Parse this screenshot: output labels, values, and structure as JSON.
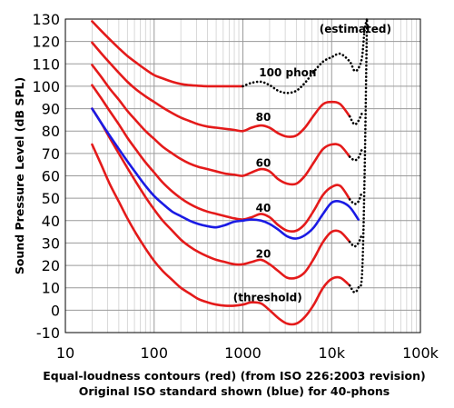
{
  "chart_data": {
    "type": "line",
    "title": "",
    "ylabel": "Sound Pressure Level (dB SPL)",
    "xlabel_lines": [
      "Equal-loudness contours (red) (from ISO 226:2003 revision)",
      "Original ISO standard shown (blue) for 40-phons"
    ],
    "x_scale": "log",
    "xlim": [
      10,
      100000
    ],
    "ylim": [
      -10,
      130
    ],
    "x_ticks": [
      {
        "value": 10,
        "label": "10"
      },
      {
        "value": 100,
        "label": "100"
      },
      {
        "value": 1000,
        "label": "1000"
      },
      {
        "value": 10000,
        "label": "10k"
      },
      {
        "value": 100000,
        "label": "100k"
      }
    ],
    "y_ticks": [
      {
        "value": 130,
        "label": "130"
      },
      {
        "value": 120,
        "label": "120"
      },
      {
        "value": 110,
        "label": "110"
      },
      {
        "value": 100,
        "label": "100"
      },
      {
        "value": 90,
        "label": "90"
      },
      {
        "value": 80,
        "label": "80"
      },
      {
        "value": 70,
        "label": "70"
      },
      {
        "value": 60,
        "label": "60"
      },
      {
        "value": 50,
        "label": "50"
      },
      {
        "value": 40,
        "label": "40"
      },
      {
        "value": 30,
        "label": "30"
      },
      {
        "value": 20,
        "label": "20"
      },
      {
        "value": 10,
        "label": "10"
      },
      {
        "value": 0,
        "label": "0"
      },
      {
        "value": -10,
        "label": "-10"
      }
    ],
    "grid": true,
    "colors": {
      "red": "#e41a1a",
      "blue": "#1a1ae4",
      "dotted": "#000000"
    },
    "series": [
      {
        "key": "threshold",
        "color": "red",
        "style": "solid",
        "points": [
          [
            20,
            74
          ],
          [
            25,
            65.5
          ],
          [
            31.5,
            56.5
          ],
          [
            40,
            48.5
          ],
          [
            50,
            41
          ],
          [
            63,
            34
          ],
          [
            80,
            27.5
          ],
          [
            100,
            22
          ],
          [
            125,
            17.5
          ],
          [
            160,
            13.5
          ],
          [
            200,
            10
          ],
          [
            250,
            7.5
          ],
          [
            315,
            5
          ],
          [
            400,
            3.5
          ],
          [
            500,
            2.5
          ],
          [
            630,
            2
          ],
          [
            800,
            2
          ],
          [
            1000,
            2.5
          ],
          [
            1250,
            3.5
          ],
          [
            1600,
            3
          ],
          [
            2000,
            0
          ],
          [
            2500,
            -3.5
          ],
          [
            3150,
            -6
          ],
          [
            4000,
            -6
          ],
          [
            5000,
            -3
          ],
          [
            6300,
            2.5
          ],
          [
            8000,
            10
          ],
          [
            10000,
            14
          ],
          [
            12500,
            14.5
          ],
          [
            16000,
            11
          ]
        ]
      },
      {
        "key": "threshold-estimated",
        "color": "dotted",
        "style": "dotted",
        "points": [
          [
            16000,
            11
          ],
          [
            18000,
            8
          ],
          [
            20000,
            10
          ],
          [
            22000,
            16
          ],
          [
            23500,
            60
          ],
          [
            25000,
            130
          ]
        ]
      },
      {
        "key": "phon-20",
        "color": "red",
        "style": "solid",
        "points": [
          [
            20,
            90
          ],
          [
            25,
            84
          ],
          [
            31.5,
            77
          ],
          [
            40,
            70
          ],
          [
            50,
            63.5
          ],
          [
            63,
            57
          ],
          [
            80,
            50.5
          ],
          [
            100,
            45
          ],
          [
            125,
            40
          ],
          [
            160,
            35.5
          ],
          [
            200,
            31.5
          ],
          [
            250,
            28.5
          ],
          [
            315,
            26
          ],
          [
            400,
            24
          ],
          [
            500,
            22.5
          ],
          [
            630,
            21.5
          ],
          [
            800,
            20.5
          ],
          [
            1000,
            20.5
          ],
          [
            1250,
            21.5
          ],
          [
            1600,
            22.5
          ],
          [
            2000,
            20.5
          ],
          [
            2500,
            17.5
          ],
          [
            3150,
            14.5
          ],
          [
            4000,
            14.5
          ],
          [
            5000,
            17
          ],
          [
            6300,
            23
          ],
          [
            8000,
            30.5
          ],
          [
            10000,
            35
          ],
          [
            12500,
            35
          ],
          [
            16000,
            30.5
          ]
        ]
      },
      {
        "key": "phon-20-estimated",
        "color": "dotted",
        "style": "dotted",
        "points": [
          [
            16000,
            30.5
          ],
          [
            18000,
            28.5
          ],
          [
            20000,
            30
          ],
          [
            22000,
            34
          ]
        ]
      },
      {
        "key": "phon-40",
        "color": "red",
        "style": "solid",
        "points": [
          [
            20,
            100.5
          ],
          [
            25,
            95
          ],
          [
            31.5,
            89
          ],
          [
            40,
            83
          ],
          [
            50,
            77
          ],
          [
            63,
            71.5
          ],
          [
            80,
            66
          ],
          [
            100,
            61.5
          ],
          [
            125,
            57
          ],
          [
            160,
            53
          ],
          [
            200,
            50
          ],
          [
            250,
            47.5
          ],
          [
            315,
            45.5
          ],
          [
            400,
            44
          ],
          [
            500,
            43
          ],
          [
            630,
            42
          ],
          [
            800,
            41
          ],
          [
            1000,
            40.5
          ],
          [
            1250,
            41.5
          ],
          [
            1600,
            43
          ],
          [
            2000,
            41.5
          ],
          [
            2500,
            38
          ],
          [
            3150,
            35.5
          ],
          [
            4000,
            35.5
          ],
          [
            5000,
            38.5
          ],
          [
            6300,
            44.5
          ],
          [
            8000,
            51.5
          ],
          [
            10000,
            55
          ],
          [
            12500,
            55.5
          ],
          [
            16000,
            49.5
          ]
        ]
      },
      {
        "key": "phon-40-estimated",
        "color": "dotted",
        "style": "dotted",
        "points": [
          [
            16000,
            49.5
          ],
          [
            18000,
            47.5
          ],
          [
            20000,
            48.5
          ],
          [
            22000,
            53
          ]
        ]
      },
      {
        "key": "phon-60",
        "color": "red",
        "style": "solid",
        "points": [
          [
            20,
            109.5
          ],
          [
            25,
            104.5
          ],
          [
            31.5,
            99
          ],
          [
            40,
            94
          ],
          [
            50,
            89
          ],
          [
            63,
            84.5
          ],
          [
            80,
            80
          ],
          [
            100,
            76.5
          ],
          [
            125,
            73
          ],
          [
            160,
            70
          ],
          [
            200,
            67.5
          ],
          [
            250,
            65.5
          ],
          [
            315,
            64
          ],
          [
            400,
            63
          ],
          [
            500,
            62
          ],
          [
            630,
            61
          ],
          [
            800,
            60.5
          ],
          [
            1000,
            60
          ],
          [
            1250,
            61.5
          ],
          [
            1600,
            63
          ],
          [
            2000,
            62
          ],
          [
            2500,
            58.5
          ],
          [
            3150,
            56.5
          ],
          [
            4000,
            56.5
          ],
          [
            5000,
            60
          ],
          [
            6300,
            66
          ],
          [
            8000,
            72
          ],
          [
            10000,
            74
          ],
          [
            12500,
            73.5
          ],
          [
            16000,
            68.5
          ]
        ]
      },
      {
        "key": "phon-60-estimated",
        "color": "dotted",
        "style": "dotted",
        "points": [
          [
            16000,
            68.5
          ],
          [
            18000,
            67
          ],
          [
            20000,
            68
          ],
          [
            22000,
            72
          ]
        ]
      },
      {
        "key": "phon-80",
        "color": "red",
        "style": "solid",
        "points": [
          [
            20,
            119.5
          ],
          [
            25,
            115
          ],
          [
            31.5,
            110.5
          ],
          [
            40,
            106
          ],
          [
            50,
            102
          ],
          [
            63,
            98.5
          ],
          [
            80,
            95.5
          ],
          [
            100,
            93
          ],
          [
            125,
            90.5
          ],
          [
            160,
            88
          ],
          [
            200,
            86
          ],
          [
            250,
            84.5
          ],
          [
            315,
            83
          ],
          [
            400,
            82
          ],
          [
            500,
            81.5
          ],
          [
            630,
            81
          ],
          [
            800,
            80.5
          ],
          [
            1000,
            80
          ],
          [
            1250,
            81.5
          ],
          [
            1600,
            82.5
          ],
          [
            2000,
            81.5
          ],
          [
            2500,
            79
          ],
          [
            3150,
            77.5
          ],
          [
            4000,
            78
          ],
          [
            5000,
            81.5
          ],
          [
            6300,
            87
          ],
          [
            8000,
            92
          ],
          [
            10000,
            93
          ],
          [
            12500,
            92
          ],
          [
            16000,
            86.5
          ]
        ]
      },
      {
        "key": "phon-80-estimated",
        "color": "dotted",
        "style": "dotted",
        "points": [
          [
            16000,
            86.5
          ],
          [
            18000,
            83
          ],
          [
            20000,
            84.5
          ],
          [
            22000,
            88
          ]
        ]
      },
      {
        "key": "phon-100",
        "color": "red",
        "style": "solid",
        "points": [
          [
            20,
            129
          ],
          [
            25,
            125
          ],
          [
            31.5,
            121
          ],
          [
            40,
            117
          ],
          [
            50,
            113.5
          ],
          [
            63,
            110.5
          ],
          [
            80,
            107.5
          ],
          [
            100,
            105
          ],
          [
            125,
            103.5
          ],
          [
            160,
            102
          ],
          [
            200,
            101
          ],
          [
            250,
            100.5
          ],
          [
            315,
            100.2
          ],
          [
            400,
            100
          ],
          [
            500,
            100
          ],
          [
            630,
            100
          ],
          [
            800,
            100
          ],
          [
            1000,
            100
          ]
        ]
      },
      {
        "key": "phon-100-estimated",
        "color": "dotted",
        "style": "dotted",
        "points": [
          [
            1000,
            100
          ],
          [
            1250,
            101.5
          ],
          [
            1600,
            102
          ],
          [
            2000,
            100.5
          ],
          [
            2500,
            98
          ],
          [
            3150,
            97
          ],
          [
            4000,
            98
          ],
          [
            5000,
            101.5
          ],
          [
            6300,
            106.5
          ],
          [
            8000,
            111
          ],
          [
            10000,
            113
          ],
          [
            12500,
            114.5
          ],
          [
            16000,
            111
          ],
          [
            18000,
            107
          ],
          [
            20000,
            108
          ],
          [
            22000,
            113
          ],
          [
            23500,
            125
          ],
          [
            25000,
            130
          ]
        ]
      },
      {
        "key": "iso-original-40",
        "color": "blue",
        "style": "solid",
        "points": [
          [
            20,
            90
          ],
          [
            25,
            84
          ],
          [
            31.5,
            78
          ],
          [
            40,
            72
          ],
          [
            50,
            66.5
          ],
          [
            63,
            61
          ],
          [
            80,
            55.5
          ],
          [
            100,
            51
          ],
          [
            125,
            47.5
          ],
          [
            160,
            44
          ],
          [
            200,
            42
          ],
          [
            250,
            40
          ],
          [
            315,
            38.5
          ],
          [
            400,
            37.5
          ],
          [
            500,
            37
          ],
          [
            630,
            38
          ],
          [
            800,
            39.5
          ],
          [
            1000,
            40
          ],
          [
            1250,
            40.5
          ],
          [
            1600,
            40
          ],
          [
            2000,
            38.5
          ],
          [
            2500,
            36
          ],
          [
            3150,
            33
          ],
          [
            4000,
            32
          ],
          [
            5000,
            33.5
          ],
          [
            6300,
            37
          ],
          [
            8000,
            43
          ],
          [
            10000,
            48
          ],
          [
            12500,
            48.5
          ],
          [
            16000,
            46
          ],
          [
            20000,
            40.5
          ]
        ]
      }
    ],
    "annotations": [
      {
        "text": "(estimated)",
        "x": 18500,
        "y": 124,
        "anchor": "middle"
      },
      {
        "text": "100 phon",
        "x": 3200,
        "y": 104.5,
        "anchor": "middle"
      },
      {
        "text": "80",
        "x": 1700,
        "y": 84.5,
        "anchor": "middle"
      },
      {
        "text": "60",
        "x": 1700,
        "y": 64,
        "anchor": "middle"
      },
      {
        "text": "40",
        "x": 1700,
        "y": 44,
        "anchor": "middle"
      },
      {
        "text": "20",
        "x": 1700,
        "y": 23.5,
        "anchor": "middle"
      },
      {
        "text": "(threshold)",
        "x": 1900,
        "y": 4,
        "anchor": "middle"
      }
    ]
  }
}
